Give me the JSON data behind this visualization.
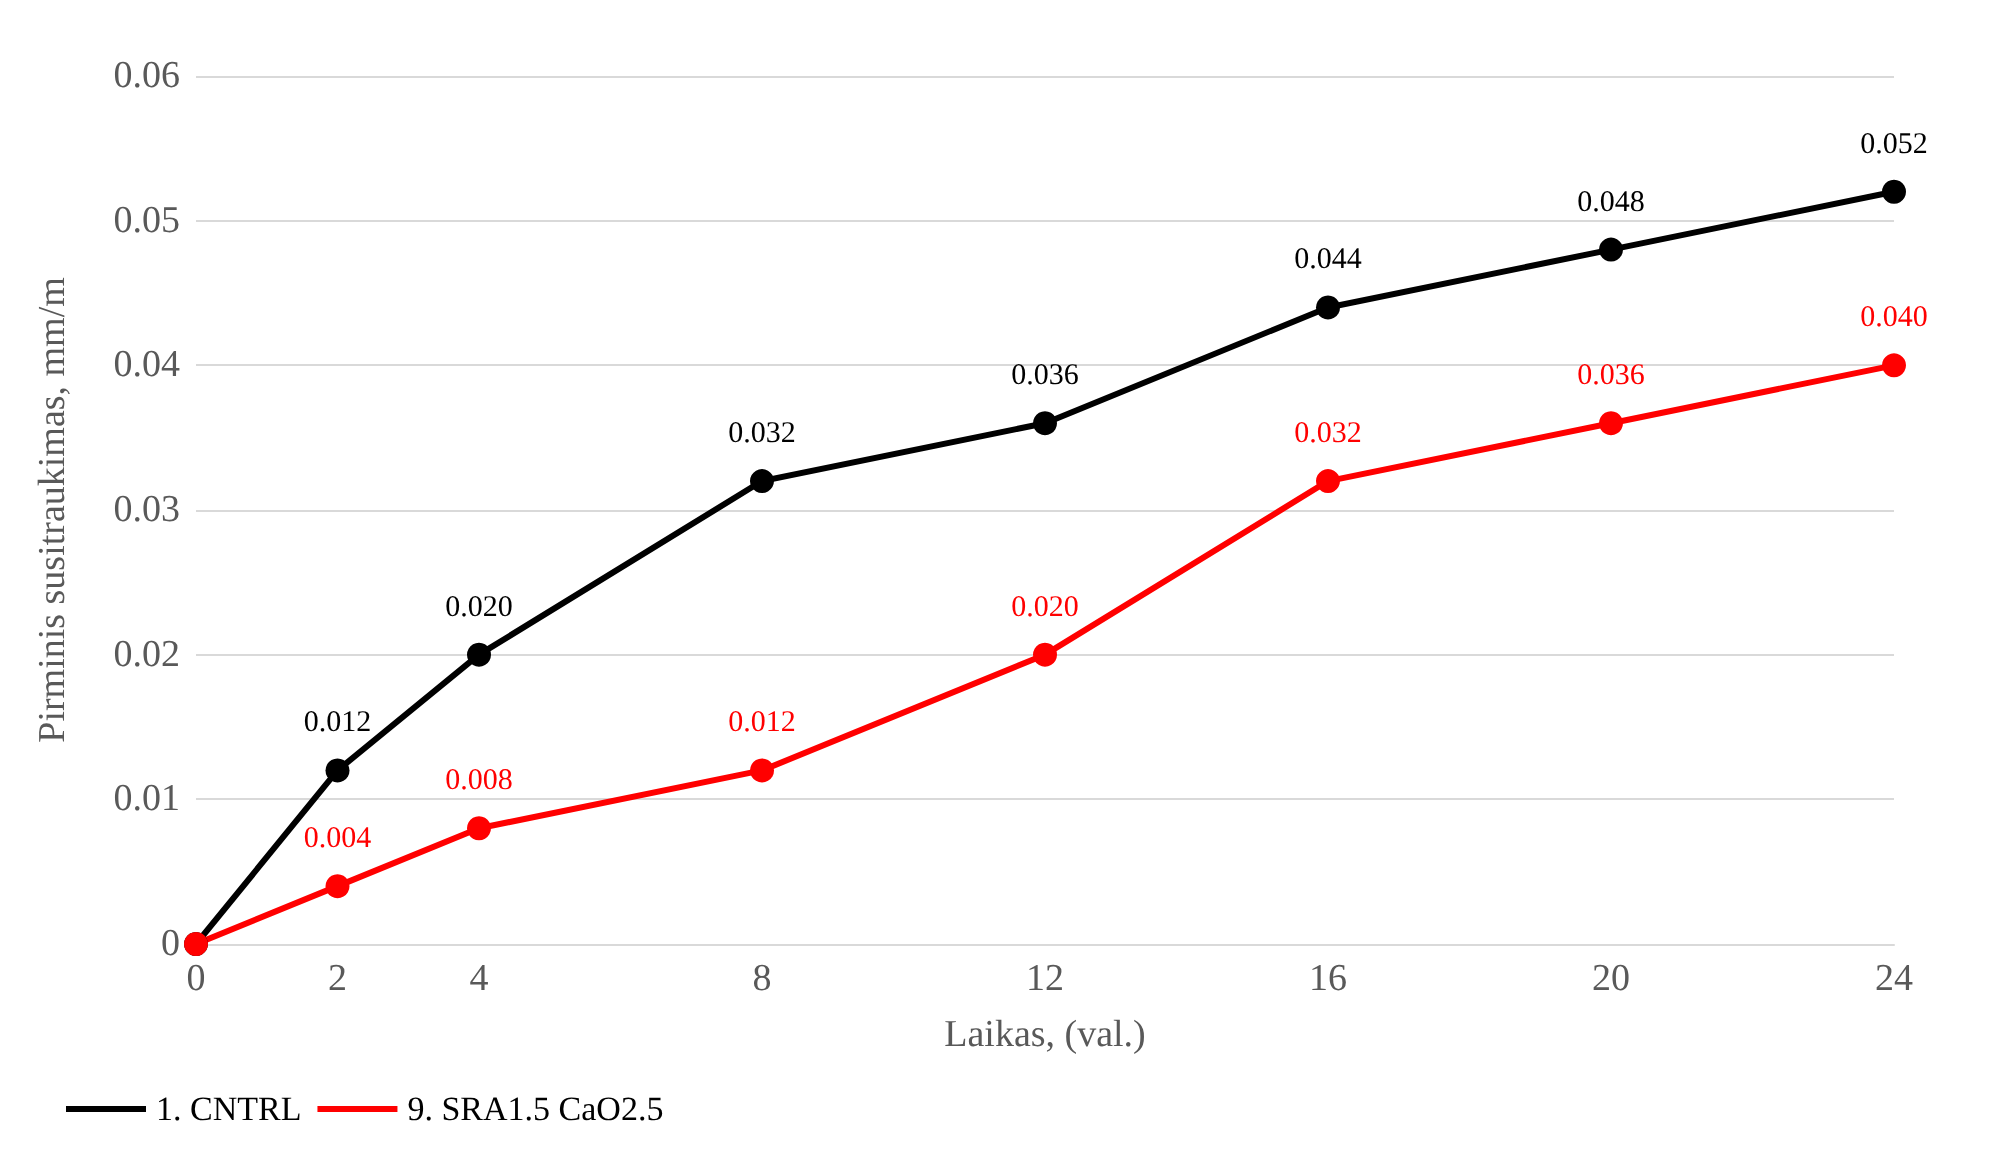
{
  "chart_data": {
    "type": "line",
    "xlabel": "Laikas, (val.)",
    "ylabel": "Pirminis susitraukimas, mm/m",
    "x": [
      0,
      2,
      4,
      8,
      12,
      16,
      20,
      24
    ],
    "series": [
      {
        "name": "1. CNTRL",
        "color": "#000000",
        "values": [
          0,
          0.012,
          0.02,
          0.032,
          0.036,
          0.044,
          0.048,
          0.052
        ],
        "value_labels": [
          null,
          "0.012",
          "0.020",
          "0.032",
          "0.036",
          "0.044",
          "0.048",
          "0.052"
        ]
      },
      {
        "name": "9. SRA1.5 CaO2.5",
        "color": "#ff0000",
        "values": [
          0,
          0.004,
          0.008,
          0.012,
          0.02,
          0.032,
          0.036,
          0.04
        ],
        "value_labels": [
          null,
          "0.004",
          "0.008",
          "0.012",
          "0.020",
          "0.032",
          "0.036",
          "0.040"
        ]
      }
    ],
    "xlim": [
      0,
      24
    ],
    "xticks": [
      0,
      2,
      4,
      8,
      12,
      16,
      20,
      24
    ],
    "ylim": [
      0,
      0.06
    ],
    "yticks": [
      0,
      0.01,
      0.02,
      0.03,
      0.04,
      0.05,
      0.06
    ],
    "grid": "y",
    "legend": "bottom left",
    "marker": "circle",
    "line_style": "solid"
  }
}
